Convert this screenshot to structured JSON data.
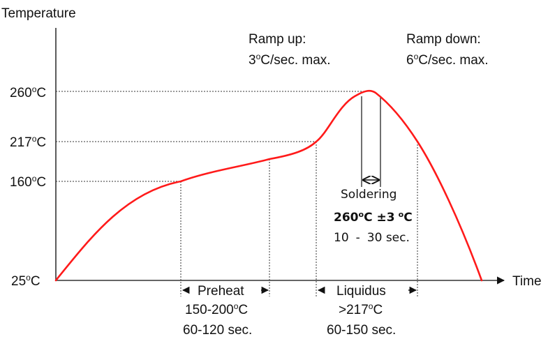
{
  "axes": {
    "y_title": "Temperature",
    "x_title": "Time",
    "y_ticks": [
      {
        "base": "260",
        "sup": "o",
        "unit": "C"
      },
      {
        "base": "217",
        "sup": "o",
        "unit": "C"
      },
      {
        "base": "160",
        "sup": "o",
        "unit": "C"
      },
      {
        "base": "25",
        "sup": "o",
        "unit": "C"
      }
    ]
  },
  "ramp_up": {
    "line1": "Ramp up:",
    "line2_value": "3",
    "line2_sup": "o",
    "line2_rest": "C/sec. max."
  },
  "ramp_down": {
    "line1": "Ramp down:",
    "line2_value": "6",
    "line2_sup": "o",
    "line2_rest": "C/sec. max."
  },
  "soldering": {
    "label": "Soldering",
    "temp_value": "260",
    "temp_sup": "o",
    "temp_unit": "C",
    "pm_sign": "±",
    "tolerance": "3",
    "tol_sup": "o",
    "tol_unit": "C",
    "time_start": "10",
    "time_dash": "-",
    "time_end": "30 sec."
  },
  "preheat": {
    "label": "Preheat",
    "temp_range": "150-200",
    "temp_sup": "o",
    "temp_unit": "C",
    "time": "60-120 sec."
  },
  "liquidus": {
    "label": "Liquidus",
    "temp": ">217",
    "temp_sup": "o",
    "temp_unit": "C",
    "time": "60-150 sec."
  },
  "colors": {
    "curve": "#ff1a1a",
    "guides": "#333333",
    "text": "#111111"
  }
}
